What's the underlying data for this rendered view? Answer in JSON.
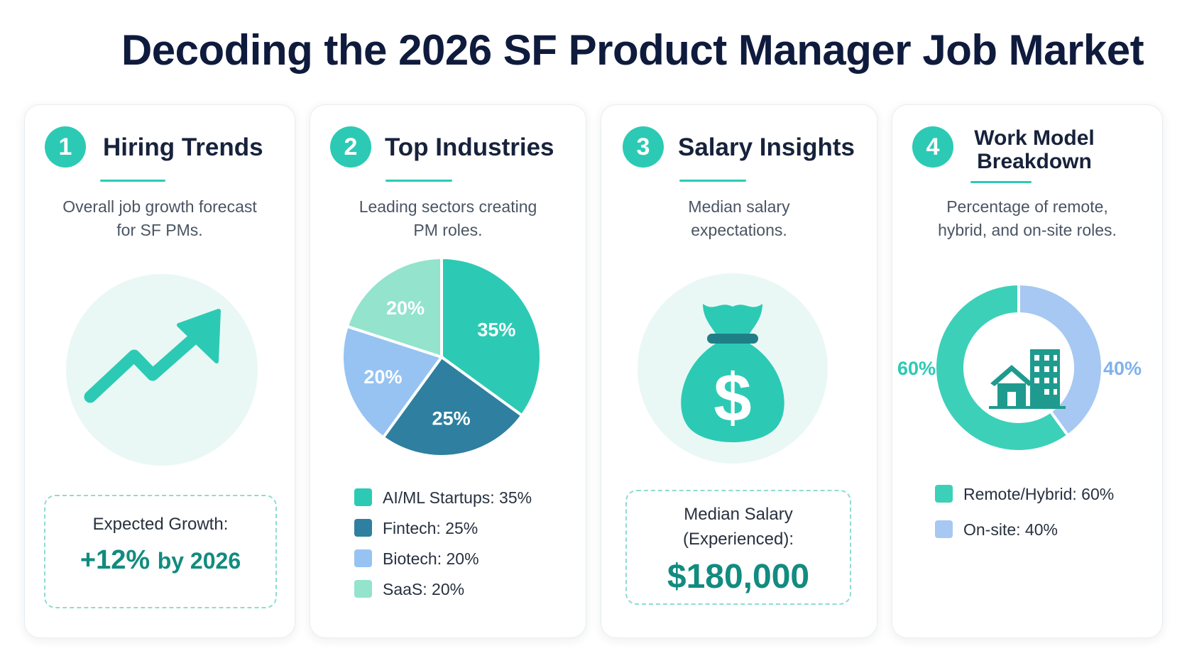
{
  "title": "Decoding the 2026 SF Product Manager Job Market",
  "colors": {
    "teal": "#2ccab4",
    "dark_teal": "#2e7fa0",
    "light_blue": "#96c3f2",
    "mint": "#93e3cd",
    "deep_teal_text": "#128b80"
  },
  "cards": [
    {
      "number": "1",
      "title": "Hiring Trends",
      "description": "Overall job growth forecast for SF PMs.",
      "icon": "trending-up-arrow-icon",
      "stat_label": "Expected Growth:",
      "stat_value": "+12%",
      "stat_suffix": "by 2026"
    },
    {
      "number": "2",
      "title": "Top Industries",
      "description": "Leading sectors creating PM roles."
    },
    {
      "number": "3",
      "title": "Salary Insights",
      "description": "Median salary expectations.",
      "icon": "money-bag-icon",
      "stat_label": "Median Salary (Experienced):",
      "stat_value": "$180,000"
    },
    {
      "number": "4",
      "title": "Work Model Breakdown",
      "description": "Percentage of remote, hybrid, and on-site roles.",
      "icon": "house-and-building-icon"
    }
  ],
  "chart_data": [
    {
      "type": "pie",
      "categories": [
        "AI/ML Startups",
        "Fintech",
        "Biotech",
        "SaaS"
      ],
      "values": [
        35,
        25,
        20,
        20
      ],
      "labels": [
        "35%",
        "25%",
        "20%",
        "20%"
      ],
      "legend": [
        "AI/ML Startups: 35%",
        "Fintech: 25%",
        "Biotech: 20%",
        "SaaS: 20%"
      ],
      "colors": [
        "#2ccab4",
        "#2e7fa0",
        "#96c3f2",
        "#93e3cd"
      ],
      "legend_placement": "bottom"
    },
    {
      "type": "pie",
      "donut": true,
      "categories": [
        "Remote/Hybrid",
        "On-site"
      ],
      "values": [
        60,
        40
      ],
      "labels": [
        "60%",
        "40%"
      ],
      "legend": [
        "Remote/Hybrid: 60%",
        "On-site: 40%"
      ],
      "colors": [
        "#3dd0b9",
        "#a6c8f2"
      ],
      "legend_placement": "bottom"
    }
  ]
}
